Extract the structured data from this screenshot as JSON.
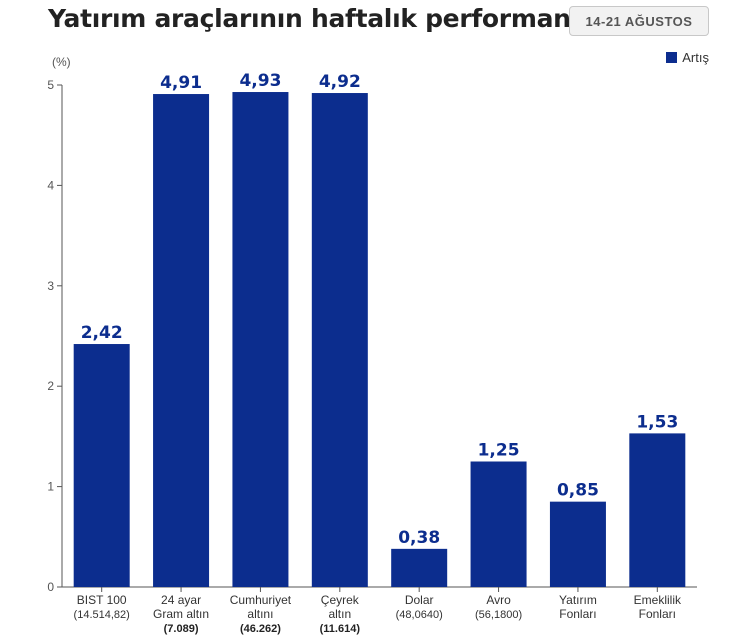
{
  "title": "Yatırım araçlarının haftalık performansı",
  "date_badge": "14-21 AĞUSTOS",
  "colors": {
    "bar": "#0c2d8e",
    "value_label": "#0c2d8e",
    "axis": "#555555"
  },
  "chart_data": {
    "type": "bar",
    "title": "Yatırım araçlarının haftalık performansı",
    "ylabel": "(%)",
    "xlabel": "",
    "ylim": [
      0,
      5
    ],
    "yticks": [
      "0",
      "1",
      "2",
      "3",
      "4",
      "5"
    ],
    "grid": false,
    "legend": "top-right",
    "series": [
      {
        "name": "Artış",
        "values": [
          2.42,
          4.91,
          4.93,
          4.92,
          0.38,
          1.25,
          0.85,
          1.53
        ],
        "labels": [
          "2,42",
          "4,91",
          "4,93",
          "4,92",
          "0,38",
          "1,25",
          "0,85",
          "1,53"
        ]
      }
    ],
    "categories": [
      {
        "lines": [
          "BIST 100"
        ],
        "sub": "(14.514,82)",
        "sub_bold": false
      },
      {
        "lines": [
          "24 ayar",
          "Gram altın"
        ],
        "sub": "(7.089)",
        "sub_bold": true
      },
      {
        "lines": [
          "Cumhuriyet",
          "altını"
        ],
        "sub": "(46.262)",
        "sub_bold": true
      },
      {
        "lines": [
          "Çeyrek",
          "altın"
        ],
        "sub": "(11.614)",
        "sub_bold": true
      },
      {
        "lines": [
          "Dolar"
        ],
        "sub": "(48,0640)",
        "sub_bold": false
      },
      {
        "lines": [
          "Avro"
        ],
        "sub": "(56,1800)",
        "sub_bold": false
      },
      {
        "lines": [
          "Yatırım",
          "Fonları"
        ],
        "sub": "",
        "sub_bold": false
      },
      {
        "lines": [
          "Emeklilik",
          "Fonları"
        ],
        "sub": "",
        "sub_bold": false
      }
    ]
  }
}
